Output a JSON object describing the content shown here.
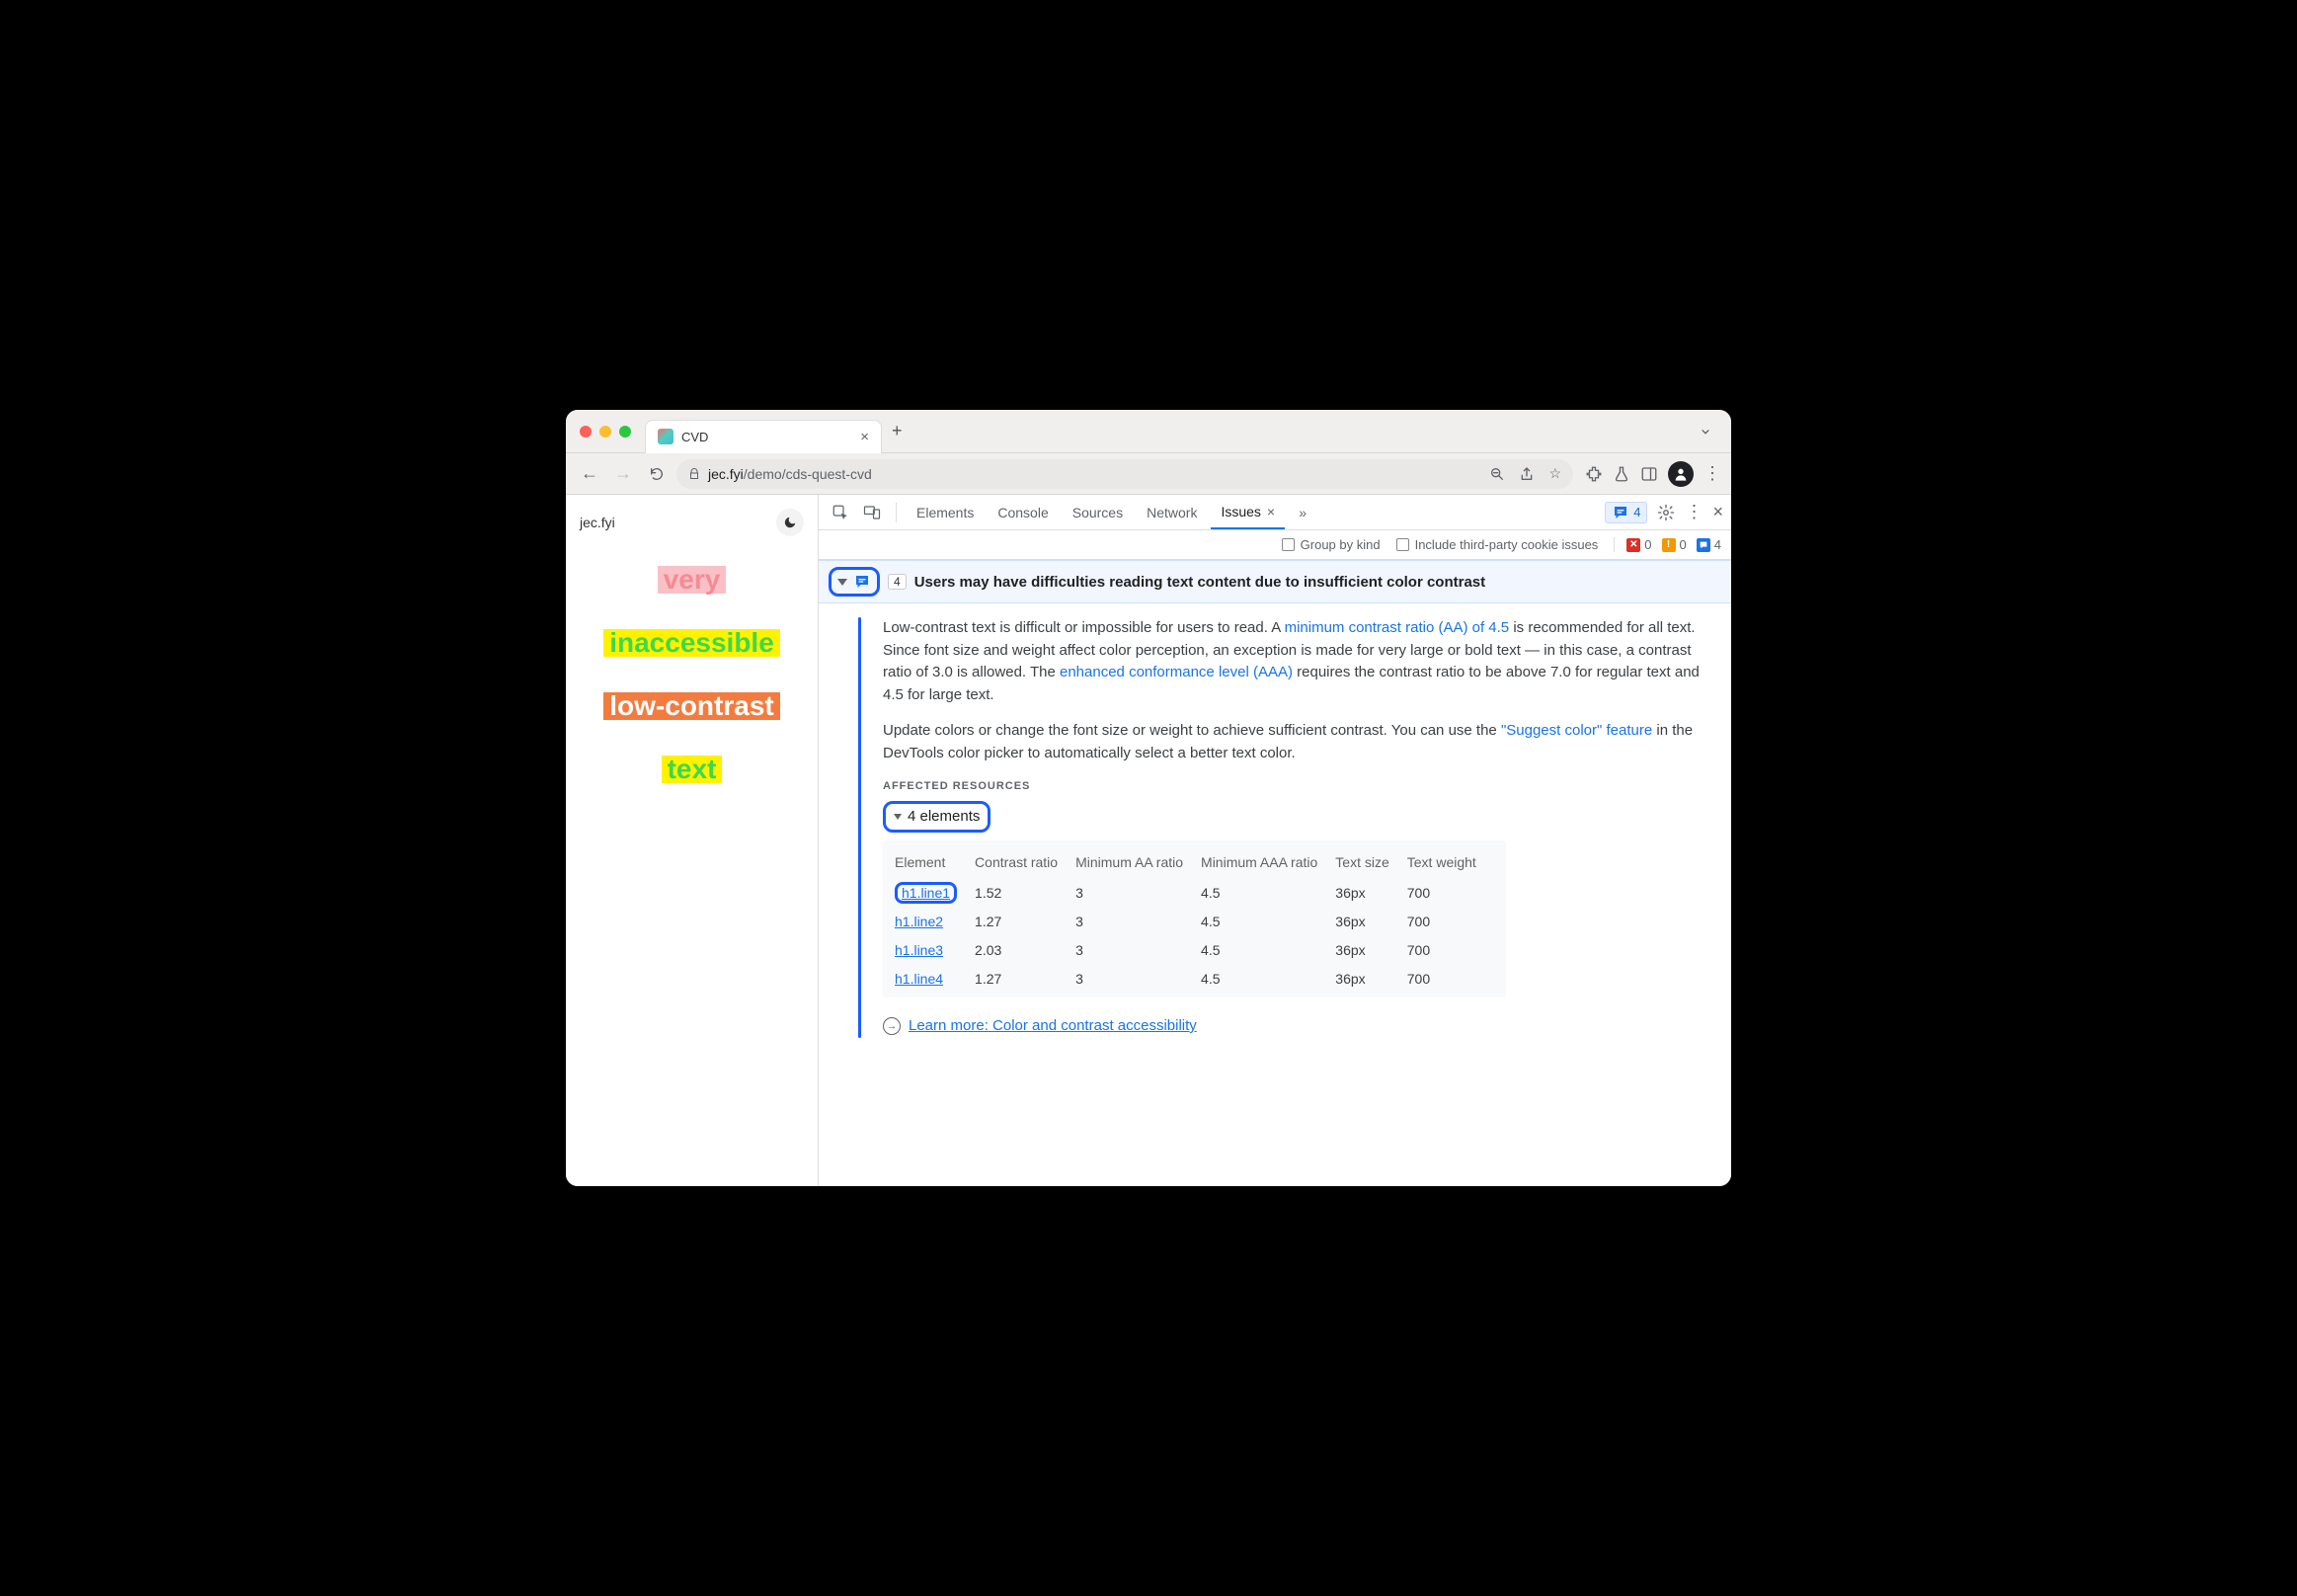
{
  "browser": {
    "tab_title": "CVD",
    "url_host": "jec.fyi",
    "url_path": "/demo/cds-quest-cvd"
  },
  "page": {
    "brand": "jec.fyi",
    "lines": [
      {
        "text": "very",
        "bg": "#f9c1c6",
        "fg": "#f48b94"
      },
      {
        "text": "inaccessible",
        "bg": "#fff200",
        "fg": "#3dd94a"
      },
      {
        "text": "low-contrast",
        "bg": "#f47b3f",
        "fg": "#ffffff"
      },
      {
        "text": "text",
        "bg": "#fff200",
        "fg": "#3dd94a"
      }
    ]
  },
  "devtools": {
    "tabs": [
      "Elements",
      "Console",
      "Sources",
      "Network"
    ],
    "active_tab": "Issues",
    "chip_count": "4",
    "filters": {
      "group_by_kind": "Group by kind",
      "third_party": "Include third-party cookie issues"
    },
    "counters": {
      "errors": "0",
      "warnings": "0",
      "info": "4"
    }
  },
  "issue": {
    "count": "4",
    "title": "Users may have difficulties reading text content due to insufficient color contrast",
    "para1_a": "Low-contrast text is difficult or impossible for users to read. A ",
    "link1": "minimum contrast ratio (AA) of 4.5",
    "para1_b": " is recommended for all text. Since font size and weight affect color perception, an exception is made for very large or bold text — in this case, a contrast ratio of 3.0 is allowed. The ",
    "link2": "enhanced conformance level (AAA)",
    "para1_c": " requires the contrast ratio to be above 7.0 for regular text and 4.5 for large text.",
    "para2_a": "Update colors or change the font size or weight to achieve sufficient contrast. You can use the ",
    "link3": "\"Suggest color\" feature",
    "para2_b": " in the DevTools color picker to automatically select a better text color.",
    "affected_label": "AFFECTED RESOURCES",
    "elements_toggle": "4 elements",
    "table": {
      "headers": [
        "Element",
        "Contrast ratio",
        "Minimum AA ratio",
        "Minimum AAA ratio",
        "Text size",
        "Text weight"
      ],
      "rows": [
        {
          "el": "h1.line1",
          "cr": "1.52",
          "aa": "3",
          "aaa": "4.5",
          "size": "36px",
          "weight": "700",
          "boxed": true
        },
        {
          "el": "h1.line2",
          "cr": "1.27",
          "aa": "3",
          "aaa": "4.5",
          "size": "36px",
          "weight": "700",
          "boxed": false
        },
        {
          "el": "h1.line3",
          "cr": "2.03",
          "aa": "3",
          "aaa": "4.5",
          "size": "36px",
          "weight": "700",
          "boxed": false
        },
        {
          "el": "h1.line4",
          "cr": "1.27",
          "aa": "3",
          "aaa": "4.5",
          "size": "36px",
          "weight": "700",
          "boxed": false
        }
      ]
    },
    "learn_more": "Learn more: Color and contrast accessibility"
  }
}
